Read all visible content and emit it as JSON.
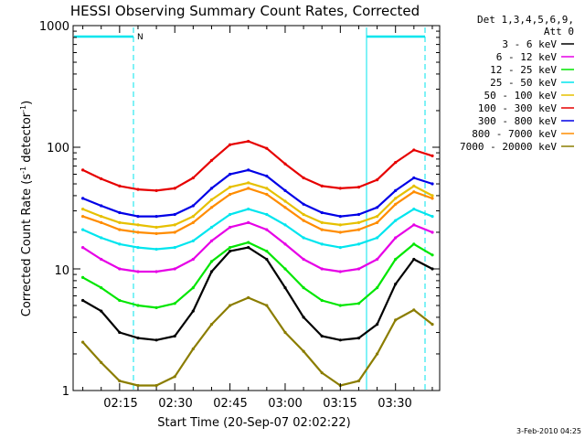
{
  "chart_data": {
    "type": "line",
    "title": "HESSI Observing Summary Count Rates, Corrected",
    "xlabel": "Start Time (20-Sep-07 02:02:22)",
    "ylabel_main": "Corrected Count Rate (s",
    "ylabel_sup1": "-1",
    "ylabel_mid": " detector",
    "ylabel_sup2": "-1",
    "ylabel_end": ")",
    "y_scale": "log",
    "ylim": [
      1,
      1000
    ],
    "xlim": [
      "02:02:22",
      "03:42:00"
    ],
    "x_ticks": [
      "02:15",
      "02:30",
      "02:45",
      "03:00",
      "03:15",
      "03:30"
    ],
    "y_ticks": [
      "1",
      "10",
      "100",
      "1000"
    ],
    "grid": false,
    "legend_header": [
      "Det 1,3,4,5,6,9,",
      "Att 0"
    ],
    "legend_position": "right",
    "footer": "3-Feb-2010 04:25",
    "flag_marker": "N",
    "flag_color": "#00e5ee",
    "x": [
      "02:05",
      "02:10",
      "02:15",
      "02:20",
      "02:25",
      "02:30",
      "02:35",
      "02:40",
      "02:45",
      "02:50",
      "02:55",
      "03:00",
      "03:05",
      "03:10",
      "03:15",
      "03:20",
      "03:25",
      "03:30",
      "03:35",
      "03:40"
    ],
    "series": [
      {
        "name": "3 - 6 keV",
        "color": "#000000",
        "values": [
          5.5,
          4.5,
          3.0,
          2.7,
          2.6,
          2.8,
          4.5,
          9.5,
          14,
          15,
          12,
          7,
          4,
          2.8,
          2.6,
          2.7,
          3.5,
          7.5,
          12,
          10
        ]
      },
      {
        "name": "6 - 12 keV",
        "color": "#e600e6",
        "values": [
          15,
          12,
          10,
          9.5,
          9.5,
          10,
          12,
          17,
          22,
          24,
          21,
          16,
          12,
          10,
          9.5,
          10,
          12,
          18,
          23,
          20
        ]
      },
      {
        "name": "12 - 25 keV",
        "color": "#00e600",
        "values": [
          8.5,
          7,
          5.5,
          5,
          4.8,
          5.2,
          7,
          11.5,
          15,
          16.5,
          14,
          10,
          7,
          5.5,
          5,
          5.2,
          7,
          12,
          16,
          13
        ]
      },
      {
        "name": "25 - 50 keV",
        "color": "#00e5ee",
        "values": [
          21,
          18,
          16,
          15,
          14.5,
          15,
          17,
          22,
          28,
          31,
          28,
          23,
          18,
          16,
          15,
          16,
          18,
          25,
          31,
          27
        ]
      },
      {
        "name": "50 - 100 keV",
        "color": "#e6c000",
        "values": [
          31,
          27,
          24,
          23,
          22,
          23,
          27,
          37,
          47,
          51,
          46,
          36,
          28,
          24,
          23,
          24,
          27,
          38,
          48,
          40
        ]
      },
      {
        "name": "100 - 300 keV",
        "color": "#e60000",
        "values": [
          65,
          55,
          48,
          45,
          44,
          46,
          56,
          78,
          105,
          112,
          98,
          73,
          56,
          48,
          46,
          47,
          54,
          75,
          95,
          85
        ]
      },
      {
        "name": "300 - 800 keV",
        "color": "#0000e6",
        "values": [
          38,
          33,
          29,
          27,
          27,
          28,
          33,
          46,
          60,
          65,
          58,
          44,
          34,
          29,
          27,
          28,
          32,
          44,
          56,
          50
        ]
      },
      {
        "name": "800 - 7000 keV",
        "color": "#ff8c00",
        "values": [
          27,
          24,
          21,
          20,
          19.5,
          20,
          24,
          32,
          41,
          46,
          41,
          32,
          25,
          21,
          20,
          21,
          24,
          34,
          43,
          38
        ]
      },
      {
        "name": "7000 - 20000 keV",
        "color": "#8b7d00",
        "values": [
          2.5,
          1.7,
          1.2,
          1.1,
          1.1,
          1.3,
          2.2,
          3.5,
          5,
          5.8,
          5,
          3,
          2.1,
          1.4,
          1.1,
          1.2,
          2,
          3.8,
          4.6,
          3.5
        ]
      }
    ]
  }
}
